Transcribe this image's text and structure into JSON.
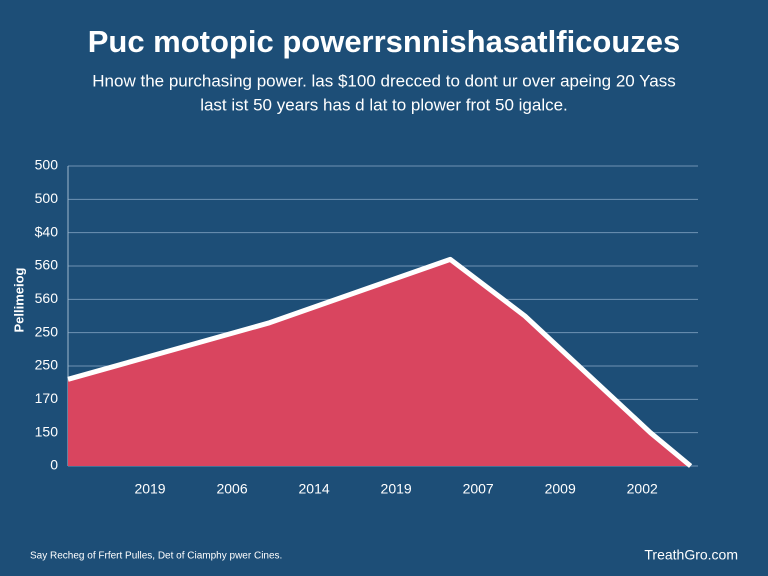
{
  "chart_data": {
    "type": "area",
    "title": "Puc motopic powerrsnnishasatlficouzes",
    "subtitle": [
      "Hnow the purchasing power. las $100 drecced to dont ur over apeing 20 Yass",
      "last ist 50 years has d lat to plower frot 50 igalce."
    ],
    "ylabel": "Pellimeiog",
    "footer_left": "Say Recheg of Frfert Pulles, Det of Ciamphy pwer Cines.",
    "footer_right": "TreathGro.com",
    "x": [
      0,
      2.46,
      4.66,
      5.57,
      7.1,
      7.59
    ],
    "series": [
      {
        "color": "#d9455f",
        "line_color": "#ffffff",
        "values": [
          2.6,
          4.3,
          6.2,
          4.5,
          1.0,
          0
        ]
      }
    ],
    "xlim": [
      0,
      7.68
    ],
    "xticks": [
      {
        "value": 1,
        "label": "2019"
      },
      {
        "value": 2,
        "label": "2006"
      },
      {
        "value": 3,
        "label": "2014"
      },
      {
        "value": 4,
        "label": "2019"
      },
      {
        "value": 5,
        "label": "2007"
      },
      {
        "value": 6,
        "label": "2009"
      },
      {
        "value": 7,
        "label": "2002"
      }
    ],
    "ylim": [
      0,
      9
    ],
    "yticks": [
      0,
      {
        "value": 1,
        "label": "150"
      },
      {
        "value": 2,
        "label": "170"
      },
      {
        "value": 3,
        "label": "250"
      },
      {
        "value": 4,
        "label": "250"
      },
      {
        "value": 5,
        "label": "560"
      },
      {
        "value": 6,
        "label": "560"
      },
      {
        "value": 7,
        "label": "$40"
      },
      {
        "value": 8,
        "label": "500"
      },
      {
        "value": 9,
        "label": "500"
      }
    ],
    "grid": true
  }
}
